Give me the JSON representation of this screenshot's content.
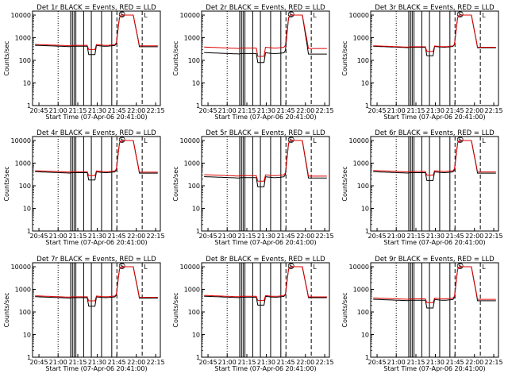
{
  "colors": {
    "background": "#ffffff",
    "axes": "#000000",
    "events": "#000000",
    "lld": "#e00000"
  },
  "chart_data": [
    {
      "type": "line",
      "detector": "1r",
      "title": "Det 1r BLACK = Events, RED = LLD",
      "xlabel": "Start Time (07-Apr-06 20:41:00)",
      "ylabel": "Counts/sec",
      "xticks": [
        "20:45",
        "21:00",
        "21:15",
        "21:30",
        "21:45",
        "22:00",
        "22:15"
      ],
      "yticks": [
        "1",
        "10",
        "100",
        "1000",
        "10000"
      ],
      "ylim": [
        1,
        15000
      ],
      "scale": "log",
      "markers": [
        "S",
        "L"
      ],
      "series": [
        {
          "name": "Events",
          "color": "black",
          "level": 420,
          "dip": 180
        },
        {
          "name": "LLD",
          "color": "red",
          "level": 460,
          "dip": 300
        }
      ]
    },
    {
      "type": "line",
      "detector": "2r",
      "title": "Det 2r BLACK = Events, RED = LLD",
      "xlabel": "Start Time (07-Apr-06 20:41:00)",
      "ylabel": "Counts/sec",
      "xticks": [
        "20:45",
        "21:00",
        "21:15",
        "21:30",
        "21:45",
        "22:00",
        "22:15"
      ],
      "yticks": [
        "1",
        "10",
        "100",
        "1000",
        "10000"
      ],
      "ylim": [
        1,
        15000
      ],
      "scale": "log",
      "markers": [
        "S",
        "L"
      ],
      "series": [
        {
          "name": "Events",
          "color": "black",
          "level": 200,
          "dip": 80
        },
        {
          "name": "LLD",
          "color": "red",
          "level": 350,
          "dip": 150
        }
      ]
    },
    {
      "type": "line",
      "detector": "3r",
      "title": "Det 3r BLACK = Events, RED = LLD",
      "xlabel": "Start Time (07-Apr-06 20:41:00)",
      "ylabel": "Counts/sec",
      "xticks": [
        "20:45",
        "21:00",
        "21:15",
        "21:30",
        "21:45",
        "22:00",
        "22:15"
      ],
      "yticks": [
        "1",
        "10",
        "100",
        "1000",
        "10000"
      ],
      "ylim": [
        1,
        15000
      ],
      "scale": "log",
      "markers": [
        "S",
        "L"
      ],
      "series": [
        {
          "name": "Events",
          "color": "black",
          "level": 380,
          "dip": 160
        },
        {
          "name": "LLD",
          "color": "red",
          "level": 400,
          "dip": 250
        }
      ]
    },
    {
      "type": "line",
      "detector": "4r",
      "title": "Det 4r BLACK = Events, RED = LLD",
      "xlabel": "Start Time (07-Apr-06 20:41:00)",
      "ylabel": "Counts/sec",
      "xticks": [
        "20:45",
        "21:00",
        "21:15",
        "21:30",
        "21:45",
        "22:00",
        "22:15"
      ],
      "yticks": [
        "1",
        "10",
        "100",
        "1000",
        "10000"
      ],
      "ylim": [
        1,
        15000
      ],
      "scale": "log",
      "markers": [
        "S",
        "L"
      ],
      "series": [
        {
          "name": "Events",
          "color": "black",
          "level": 380,
          "dip": 180
        },
        {
          "name": "LLD",
          "color": "red",
          "level": 420,
          "dip": 280
        }
      ]
    },
    {
      "type": "line",
      "detector": "5r",
      "title": "Det 5r BLACK = Events, RED = LLD",
      "xlabel": "Start Time (07-Apr-06 20:41:00)",
      "ylabel": "Counts/sec",
      "xticks": [
        "20:45",
        "21:00",
        "21:15",
        "21:30",
        "21:45",
        "22:00",
        "22:15"
      ],
      "yticks": [
        "1",
        "10",
        "100",
        "1000",
        "10000"
      ],
      "ylim": [
        1,
        15000
      ],
      "scale": "log",
      "markers": [
        "S",
        "L"
      ],
      "series": [
        {
          "name": "Events",
          "color": "black",
          "level": 230,
          "dip": 90
        },
        {
          "name": "LLD",
          "color": "red",
          "level": 280,
          "dip": 160
        }
      ]
    },
    {
      "type": "line",
      "detector": "6r",
      "title": "Det 6r BLACK = Events, RED = LLD",
      "xlabel": "Start Time (07-Apr-06 20:41:00)",
      "ylabel": "Counts/sec",
      "xticks": [
        "20:45",
        "21:00",
        "21:15",
        "21:30",
        "21:45",
        "22:00",
        "22:15"
      ],
      "yticks": [
        "1",
        "10",
        "100",
        "1000",
        "10000"
      ],
      "ylim": [
        1,
        15000
      ],
      "scale": "log",
      "markers": [
        "S",
        "L"
      ],
      "series": [
        {
          "name": "Events",
          "color": "black",
          "level": 380,
          "dip": 170
        },
        {
          "name": "LLD",
          "color": "red",
          "level": 430,
          "dip": 290
        }
      ]
    },
    {
      "type": "line",
      "detector": "7r",
      "title": "Det 7r BLACK = Events, RED = LLD",
      "xlabel": "Start Time (07-Apr-06 20:41:00)",
      "ylabel": "Counts/sec",
      "xticks": [
        "20:45",
        "21:00",
        "21:15",
        "21:30",
        "21:45",
        "22:00",
        "22:15"
      ],
      "yticks": [
        "1",
        "10",
        "100",
        "1000",
        "10000"
      ],
      "ylim": [
        1,
        15000
      ],
      "scale": "log",
      "markers": [
        "S",
        "L"
      ],
      "series": [
        {
          "name": "Events",
          "color": "black",
          "level": 430,
          "dip": 180
        },
        {
          "name": "LLD",
          "color": "red",
          "level": 470,
          "dip": 310
        }
      ]
    },
    {
      "type": "line",
      "detector": "8r",
      "title": "Det 8r BLACK = Events, RED = LLD",
      "xlabel": "Start Time (07-Apr-06 20:41:00)",
      "ylabel": "Counts/sec",
      "xticks": [
        "20:45",
        "21:00",
        "21:15",
        "21:30",
        "21:45",
        "22:00",
        "22:15"
      ],
      "yticks": [
        "1",
        "10",
        "100",
        "1000",
        "10000"
      ],
      "ylim": [
        1,
        15000
      ],
      "scale": "log",
      "markers": [
        "S",
        "L"
      ],
      "series": [
        {
          "name": "Events",
          "color": "black",
          "level": 450,
          "dip": 200
        },
        {
          "name": "LLD",
          "color": "red",
          "level": 490,
          "dip": 320
        }
      ]
    },
    {
      "type": "line",
      "detector": "9r",
      "title": "Det 9r BLACK = Events, RED = LLD",
      "xlabel": "Start Time (07-Apr-06 20:41:00)",
      "ylabel": "Counts/sec",
      "xticks": [
        "20:45",
        "21:00",
        "21:15",
        "21:30",
        "21:45",
        "22:00",
        "22:15"
      ],
      "yticks": [
        "1",
        "10",
        "100",
        "1000",
        "10000"
      ],
      "ylim": [
        1,
        15000
      ],
      "scale": "log",
      "markers": [
        "S",
        "L"
      ],
      "series": [
        {
          "name": "Events",
          "color": "black",
          "level": 330,
          "dip": 150
        },
        {
          "name": "LLD",
          "color": "red",
          "level": 380,
          "dip": 260
        }
      ]
    }
  ]
}
